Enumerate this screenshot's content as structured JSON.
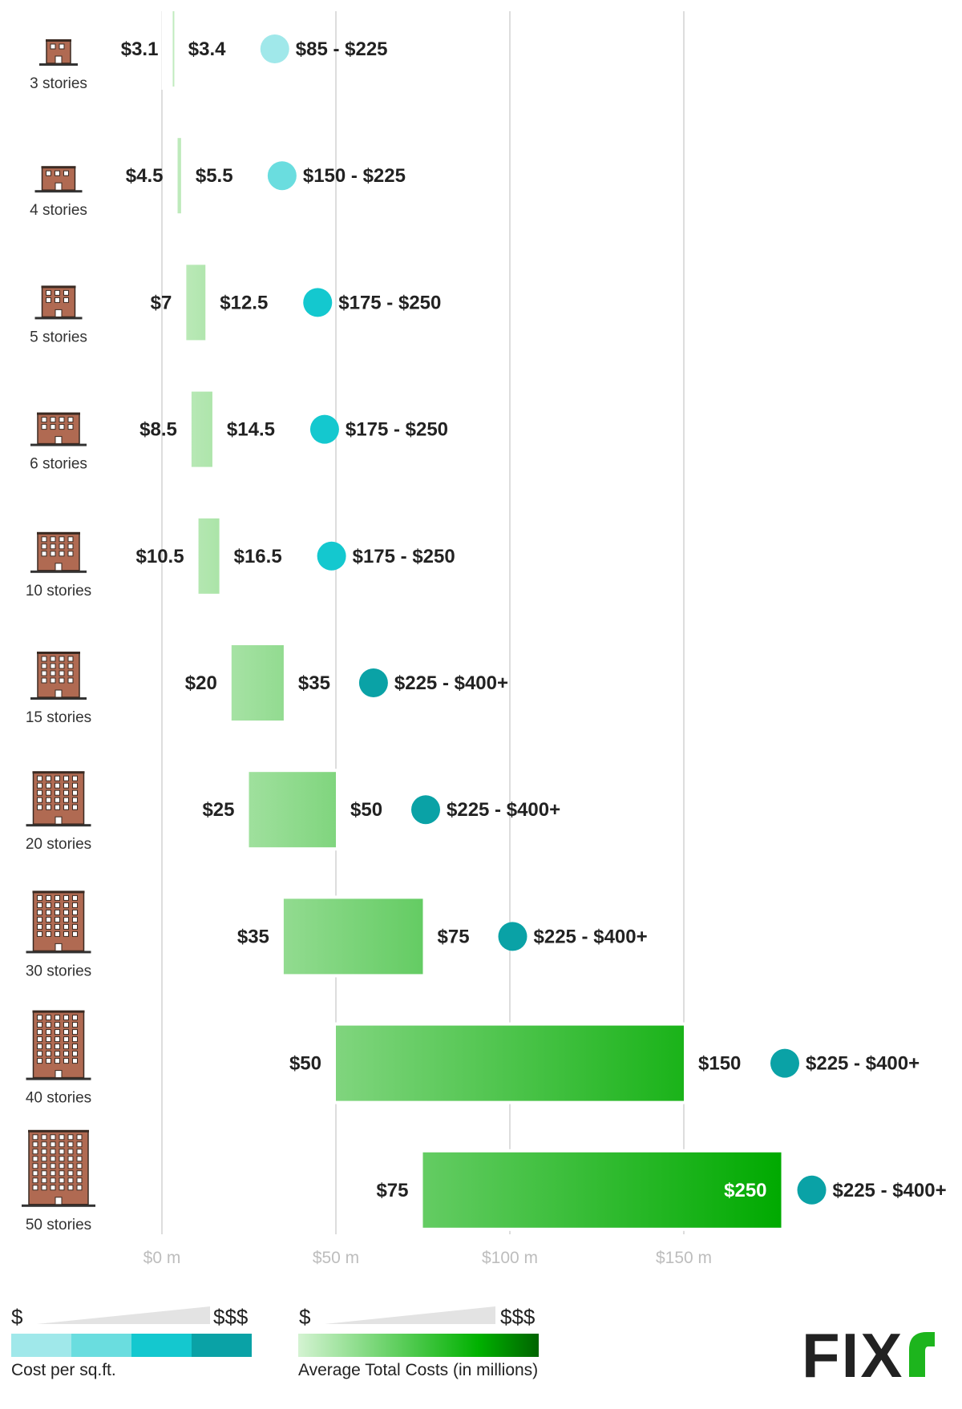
{
  "chart_data": {
    "type": "bar",
    "categories": [
      "3 stories",
      "4 stories",
      "5 stories",
      "6 stories",
      "10 stories",
      "15 stories",
      "20 stories",
      "30 stories",
      "40 stories",
      "50 stories"
    ],
    "series": [
      {
        "values": [
          [
            3.1,
            3.4
          ],
          [
            4.5,
            5.5
          ],
          [
            7,
            12.5
          ],
          [
            8.5,
            14.5
          ],
          [
            10.5,
            16.5
          ],
          [
            20,
            35
          ],
          [
            25,
            50
          ],
          [
            35,
            75
          ],
          [
            50,
            150
          ],
          [
            75,
            250
          ]
        ]
      }
    ],
    "low_labels": [
      "$3.1",
      "$4.5",
      "$7",
      "$8.5",
      "$10.5",
      "$20",
      "$25",
      "$35",
      "$50",
      "$75"
    ],
    "high_labels": [
      "$3.4",
      "$5.5",
      "$12.5",
      "$14.5",
      "$16.5",
      "$35",
      "$50",
      "$75",
      "$150",
      "$250"
    ],
    "cost_per_sqft": [
      "$85 - $225",
      "$150 - $225",
      "$175 - $250",
      "$175 - $250",
      "$175 - $250",
      "$225 - $400+",
      "$225 - $400+",
      "$225 - $400+",
      "$225 - $400+",
      "$225 - $400+"
    ],
    "cost_level": [
      1,
      2,
      3,
      3,
      3,
      4,
      4,
      4,
      4,
      4
    ],
    "x_ticks": [
      0,
      50,
      100,
      150
    ],
    "x_tick_labels": [
      "$0 m",
      "$50 m",
      "$100 m",
      "$150 m"
    ],
    "xlim": [
      0,
      178
    ],
    "grid": true,
    "legend_position": "bottom"
  },
  "colors": {
    "cost_levels": [
      "#a0e8ea",
      "#6adddf",
      "#14c8cf",
      "#0aa2a6"
    ],
    "bar_light": "#c9eec6",
    "bar_dark": "#00aa00",
    "grid": "#dddddd",
    "brick": "#b06a52",
    "logo_accent": "#1db51d"
  },
  "legend": {
    "sqft_low": "$",
    "sqft_high": "$$$",
    "sqft_label": "Cost per sq.ft.",
    "total_low": "$",
    "total_high": "$$$",
    "total_label": "Average Total Costs (in millions)"
  },
  "logo": {
    "text": "FIX"
  }
}
